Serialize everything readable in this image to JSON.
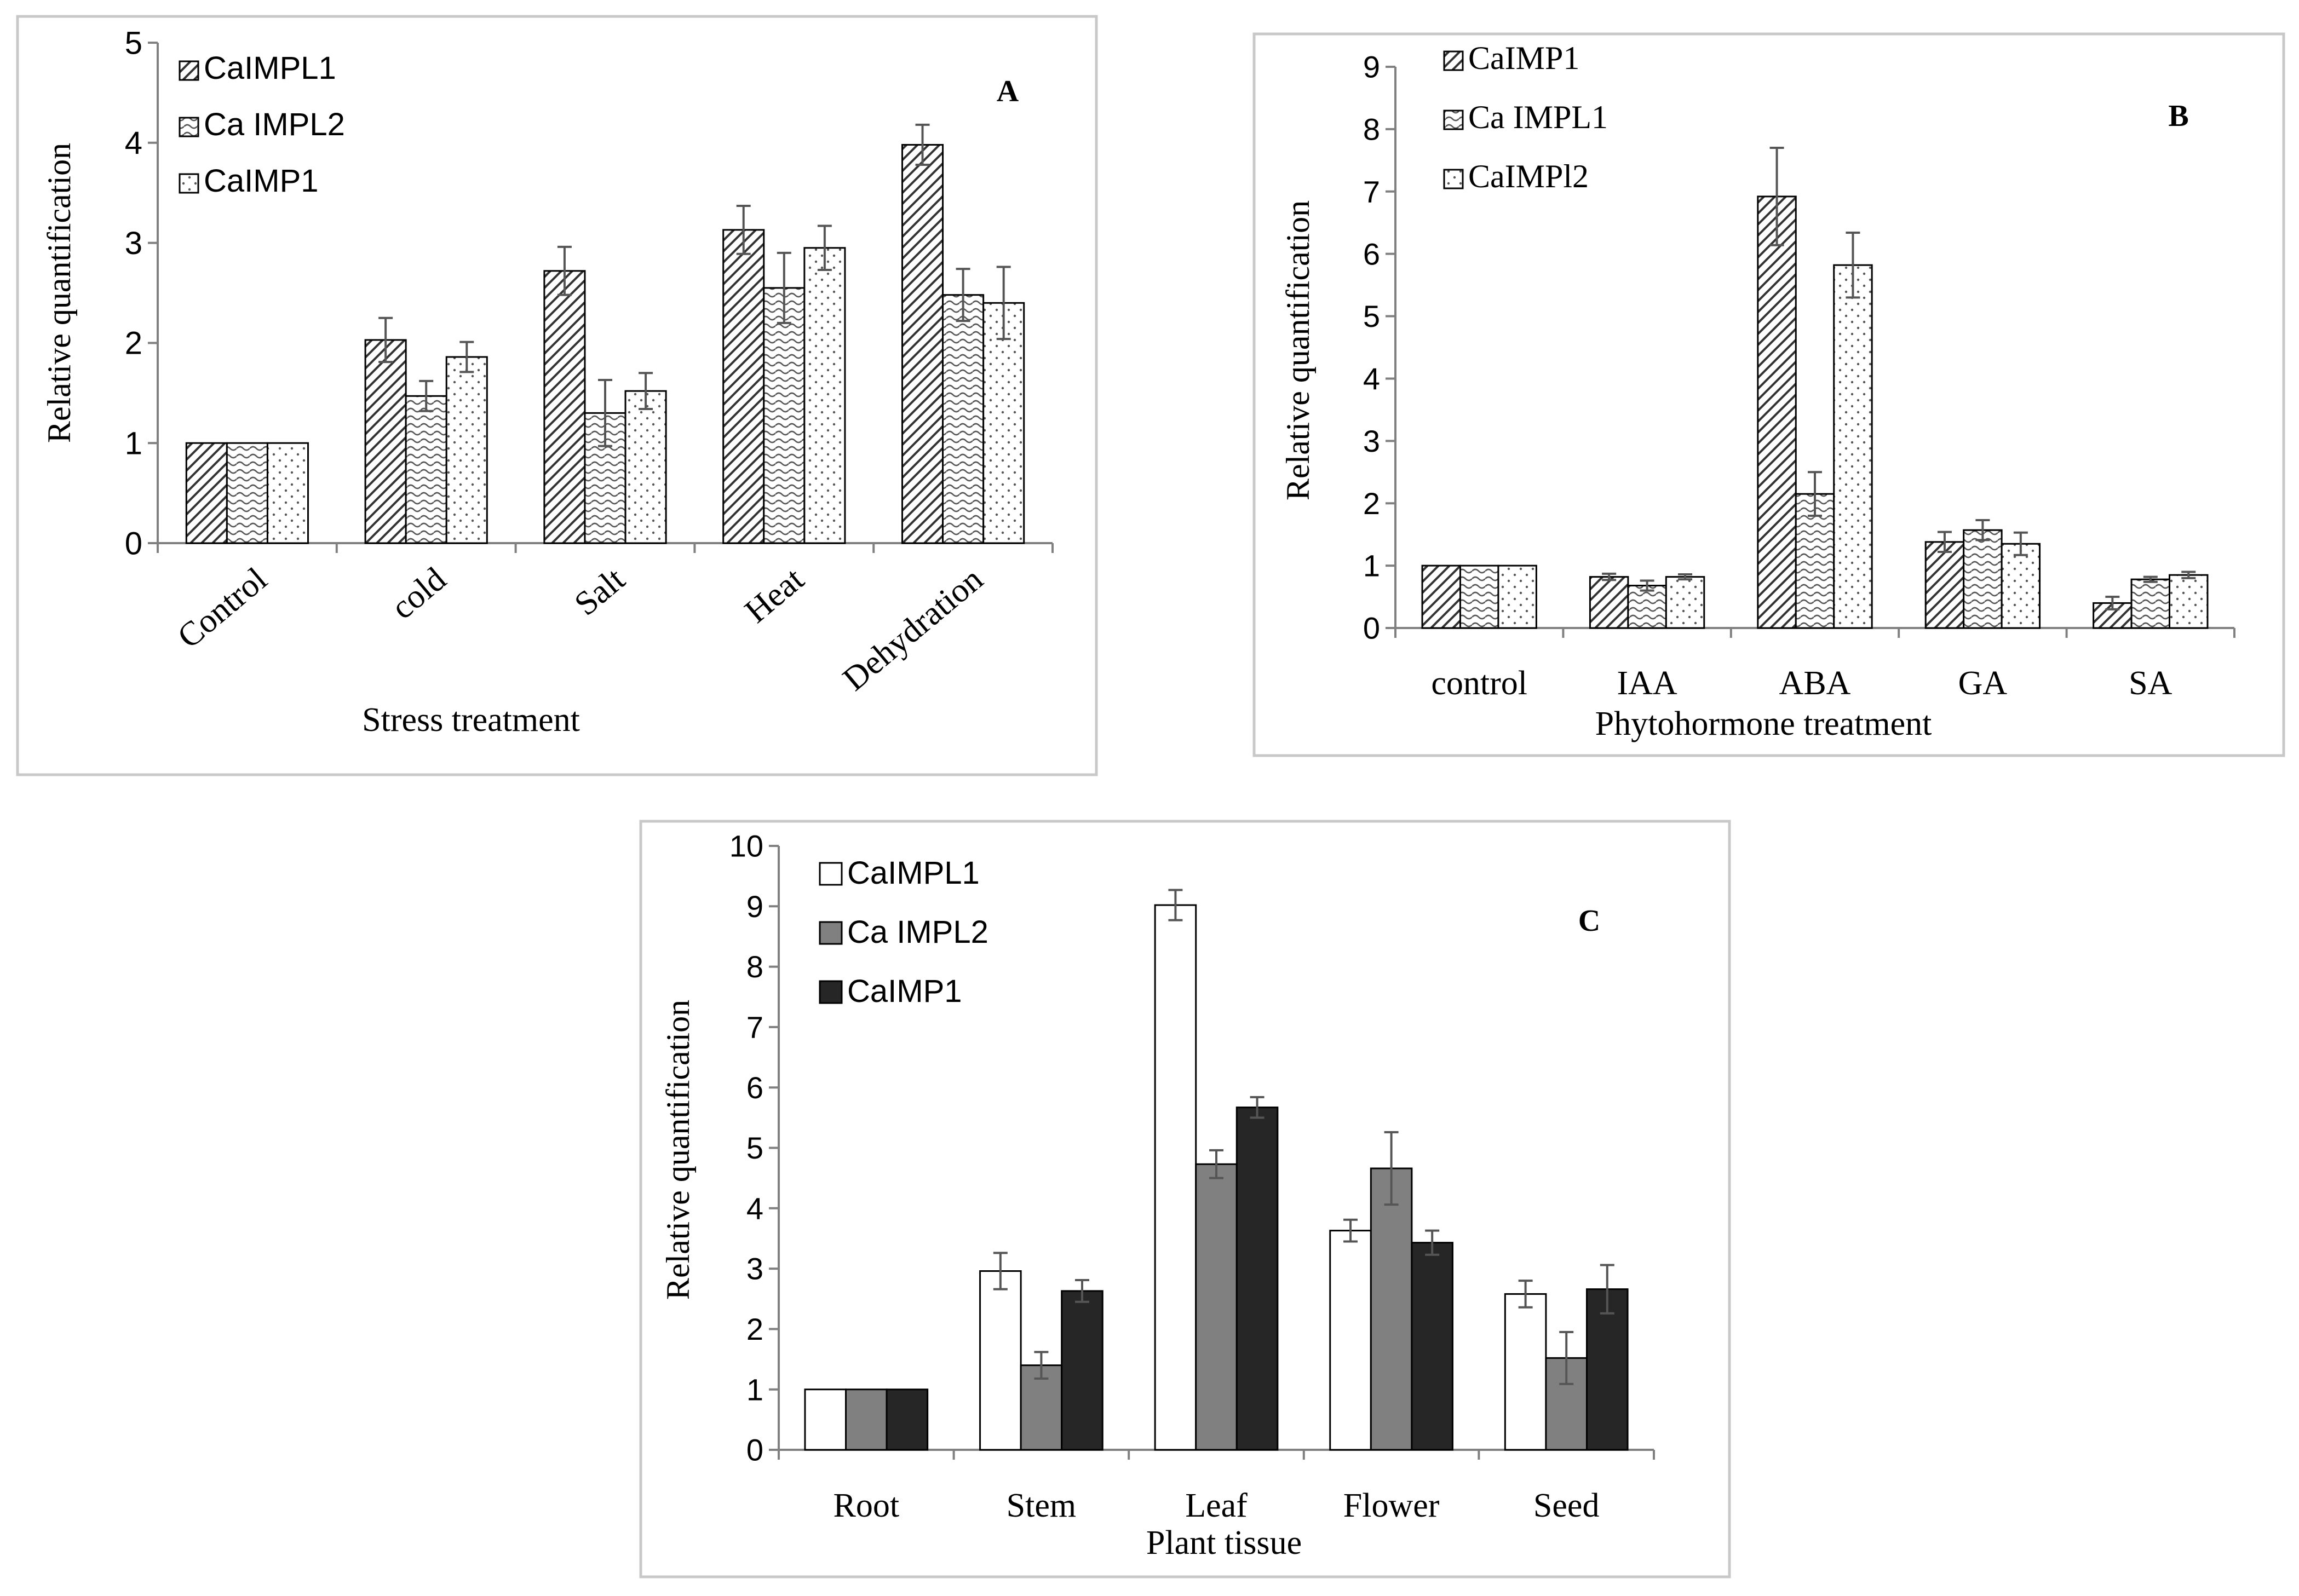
{
  "chart_data": [
    {
      "type": "bar",
      "panel_label": "A",
      "xlabel": "Stress treatment",
      "ylabel": "Relative quantification",
      "ylim": [
        0,
        5
      ],
      "yticks": [
        "0",
        "1",
        "2",
        "3",
        "4",
        "5"
      ],
      "categories": [
        "Control",
        "cold",
        "Salt",
        "Heat",
        "Dehydration"
      ],
      "series": [
        {
          "name": "CaIMPL1",
          "pattern": "diag",
          "values": [
            1.0,
            2.03,
            2.72,
            3.13,
            3.98
          ],
          "errors": [
            0.0,
            0.22,
            0.24,
            0.24,
            0.2
          ]
        },
        {
          "name": "Ca IMPL2",
          "pattern": "wave",
          "values": [
            1.0,
            1.47,
            1.3,
            2.55,
            2.48
          ],
          "errors": [
            0.0,
            0.15,
            0.33,
            0.35,
            0.26
          ]
        },
        {
          "name": "CaIMP1",
          "pattern": "dots",
          "values": [
            1.0,
            1.86,
            1.52,
            2.95,
            2.4
          ],
          "errors": [
            0.0,
            0.15,
            0.18,
            0.22,
            0.36
          ]
        }
      ]
    },
    {
      "type": "bar",
      "panel_label": "B",
      "xlabel": "Phytohormone treatment",
      "ylabel": "Relative quantification",
      "ylim": [
        0,
        9
      ],
      "yticks": [
        "0",
        "1",
        "2",
        "3",
        "4",
        "5",
        "6",
        "7",
        "8",
        "9"
      ],
      "categories": [
        "control",
        "IAA",
        "ABA",
        "GA",
        "SA"
      ],
      "series": [
        {
          "name": "CaIMP1",
          "pattern": "diag",
          "values": [
            1.0,
            0.82,
            6.92,
            1.38,
            0.4
          ],
          "errors": [
            0.0,
            0.05,
            0.78,
            0.16,
            0.1
          ]
        },
        {
          "name": "Ca IMPL1",
          "pattern": "wave",
          "values": [
            1.0,
            0.68,
            2.15,
            1.57,
            0.78
          ],
          "errors": [
            0.0,
            0.08,
            0.35,
            0.16,
            0.04
          ]
        },
        {
          "name": "CaIMPl2",
          "pattern": "dots",
          "values": [
            1.0,
            0.82,
            5.82,
            1.35,
            0.85
          ],
          "errors": [
            0.0,
            0.04,
            0.52,
            0.18,
            0.05
          ]
        }
      ]
    },
    {
      "type": "bar",
      "panel_label": "C",
      "xlabel": "Plant tissue",
      "ylabel": "Relative quantification",
      "ylim": [
        0,
        10
      ],
      "yticks": [
        "0",
        "1",
        "2",
        "3",
        "4",
        "5",
        "6",
        "7",
        "8",
        "9",
        "10"
      ],
      "categories": [
        "Root",
        "Stem",
        "Leaf",
        "Flower",
        "Seed"
      ],
      "series": [
        {
          "name": "CaIMPL1",
          "color": "#ffffff",
          "values": [
            1.0,
            2.96,
            9.02,
            3.63,
            2.58
          ],
          "errors": [
            0.0,
            0.3,
            0.25,
            0.18,
            0.22
          ]
        },
        {
          "name": "Ca IMPL2",
          "color": "#808080",
          "values": [
            1.0,
            1.4,
            4.73,
            4.66,
            1.52
          ],
          "errors": [
            0.0,
            0.22,
            0.23,
            0.6,
            0.43
          ]
        },
        {
          "name": "CaIMP1",
          "color": "#262626",
          "values": [
            1.0,
            2.63,
            5.67,
            3.43,
            2.66
          ],
          "errors": [
            0.0,
            0.18,
            0.17,
            0.2,
            0.4
          ]
        }
      ]
    }
  ]
}
